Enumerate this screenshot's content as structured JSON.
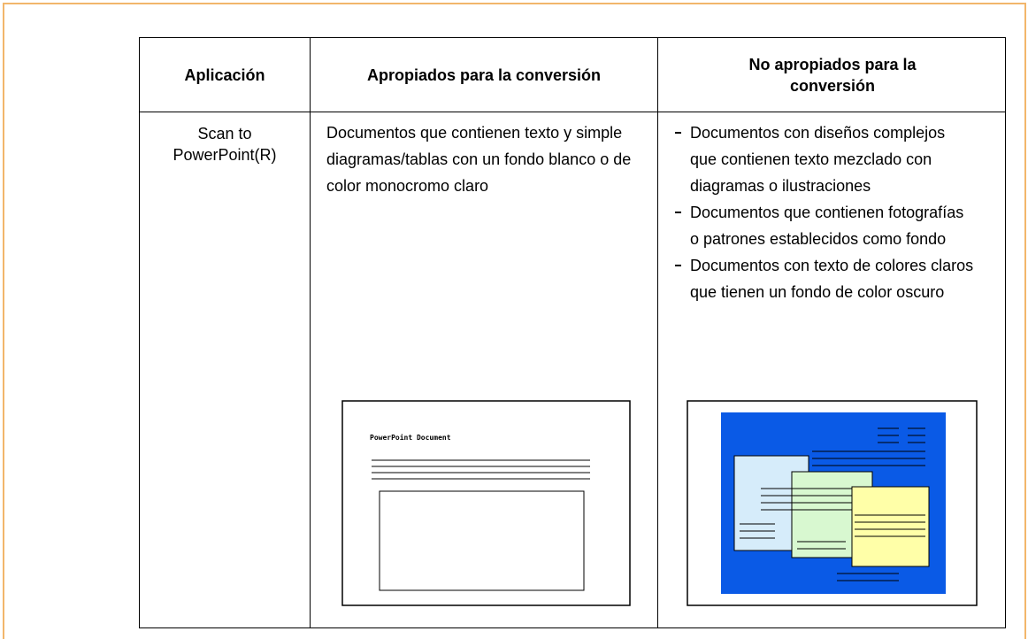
{
  "table": {
    "header": [
      "Aplicación",
      "Apropiados para la conversión",
      "No apropiados para la conversión"
    ],
    "rows": [
      {
        "application": "Scan to PowerPoint(R)",
        "suitable": "Documentos que contienen texto y simple diagramas/tablas con un fondo blanco o de color monocromo claro",
        "not_suitable": [
          "Documentos con diseños complejos que contienen texto mezclado con diagramas o ilustraciones",
          "Documentos que contienen fotografías o patrones establecidos como fondo",
          "Documentos con texto de colores claros que tienen un fondo de color oscuro"
        ],
        "suitable_image_label": "PowerPoint Document"
      }
    ]
  }
}
